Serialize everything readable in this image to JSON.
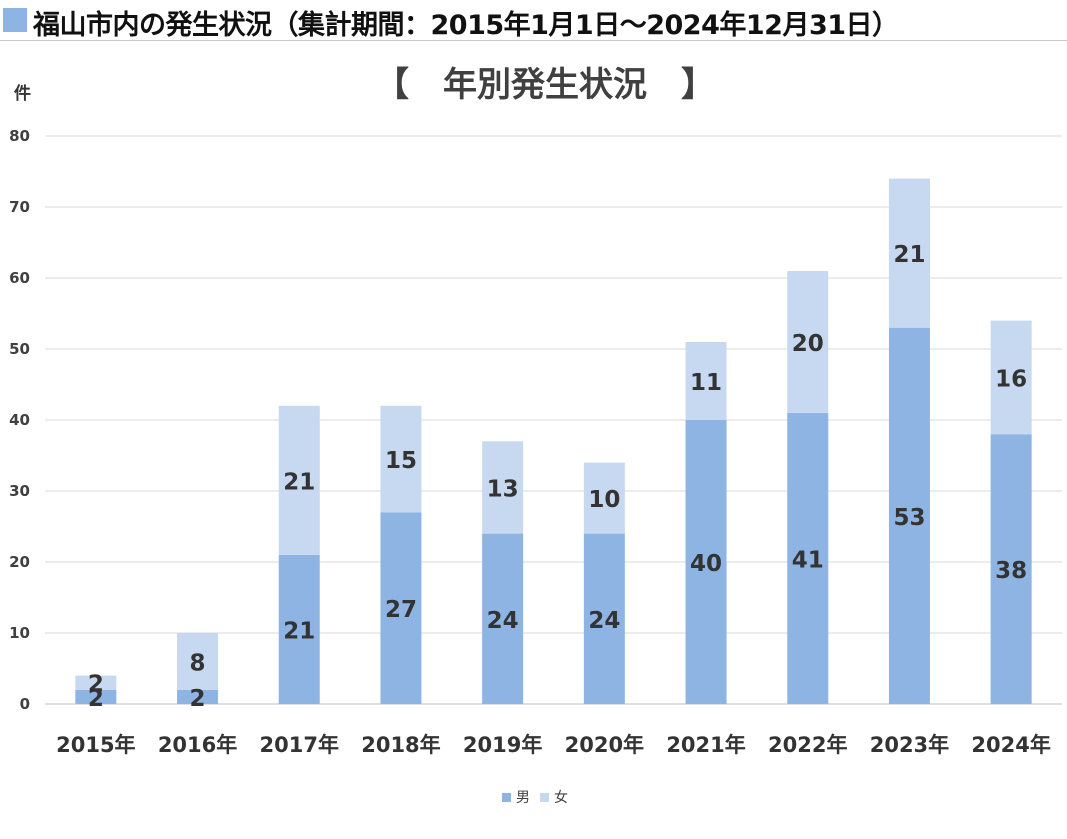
{
  "header": {
    "title": "福山市内の発生状況（集計期間：2015年1月1日～2024年12月31日）",
    "marker_color": "#8eb4e3"
  },
  "chart_data": {
    "type": "bar",
    "stacked": true,
    "title": "【　年別発生状況　】",
    "ylabel": "件",
    "xlabel": "",
    "categories": [
      "2015年",
      "2016年",
      "2017年",
      "2018年",
      "2019年",
      "2020年",
      "2021年",
      "2022年",
      "2023年",
      "2024年"
    ],
    "series": [
      {
        "name": "男",
        "color": "#8eb4e3",
        "values": [
          2,
          2,
          21,
          27,
          24,
          24,
          40,
          41,
          53,
          38
        ]
      },
      {
        "name": "女",
        "color": "#c6d9f1",
        "values": [
          2,
          8,
          21,
          15,
          13,
          10,
          11,
          20,
          21,
          16
        ]
      }
    ],
    "ylim": [
      0,
      80
    ],
    "yticks": [
      0,
      10,
      20,
      30,
      40,
      50,
      60,
      70,
      80
    ],
    "grid": true,
    "legend": "bottom-center"
  }
}
